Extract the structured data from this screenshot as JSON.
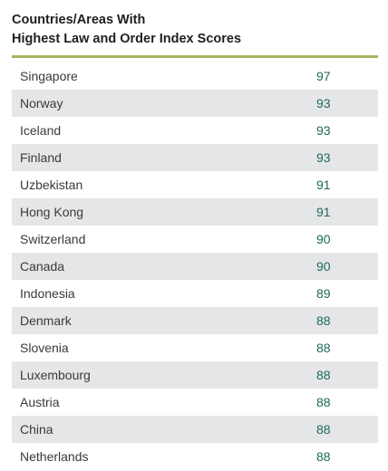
{
  "header": {
    "title_line1": "Countries/Areas With",
    "title_line2": "Highest Law and Order Index Scores"
  },
  "accent_color": "#a7b45e",
  "score_color": "#1e6a5a",
  "rows": [
    {
      "country": "Singapore",
      "score": "97"
    },
    {
      "country": "Norway",
      "score": "93"
    },
    {
      "country": "Iceland",
      "score": "93"
    },
    {
      "country": "Finland",
      "score": "93"
    },
    {
      "country": "Uzbekistan",
      "score": "91"
    },
    {
      "country": "Hong Kong",
      "score": "91"
    },
    {
      "country": "Switzerland",
      "score": "90"
    },
    {
      "country": "Canada",
      "score": "90"
    },
    {
      "country": "Indonesia",
      "score": "89"
    },
    {
      "country": "Denmark",
      "score": "88"
    },
    {
      "country": "Slovenia",
      "score": "88"
    },
    {
      "country": "Luxembourg",
      "score": "88"
    },
    {
      "country": "Austria",
      "score": "88"
    },
    {
      "country": "China",
      "score": "88"
    },
    {
      "country": "Netherlands",
      "score": "88"
    }
  ]
}
